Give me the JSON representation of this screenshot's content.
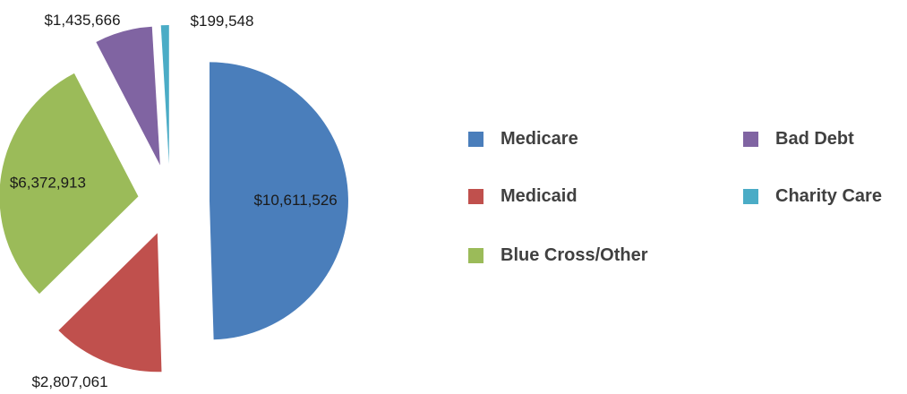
{
  "chart_data": {
    "type": "pie",
    "exploded": true,
    "categories": [
      "Medicare",
      "Medicaid",
      "Blue Cross/Other",
      "Bad Debt",
      "Charity Care"
    ],
    "values": [
      10611526,
      2807061,
      6372913,
      1435666,
      199548
    ],
    "data_labels": [
      "$10,611,526",
      "$2,807,061",
      "$6,372,913",
      "$1,435,666",
      "$199,548"
    ],
    "colors": [
      "#4a7ebb",
      "#c0504d",
      "#9bbb59",
      "#8064a2",
      "#4bacc6"
    ],
    "legend": {
      "placement": "right",
      "entries": [
        "Medicare",
        "Medicaid",
        "Blue Cross/Other",
        "Bad Debt",
        "Charity Care"
      ]
    },
    "title": ""
  }
}
